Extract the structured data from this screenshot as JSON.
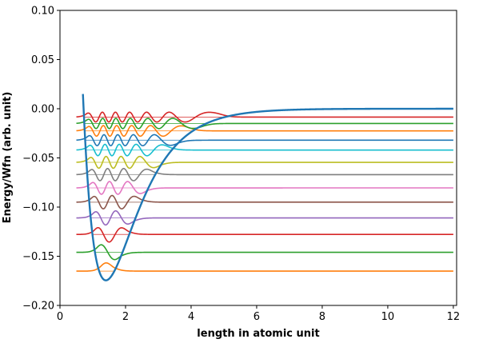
{
  "chart_data": {
    "type": "line",
    "title": "",
    "xlabel": "length in atomic unit",
    "ylabel": "Energy/Wfn (arb. unit)",
    "xlim": [
      0,
      12.1
    ],
    "ylim": [
      -0.2,
      0.1
    ],
    "x_ticks": [
      {
        "value": 0,
        "label": "0"
      },
      {
        "value": 2,
        "label": "2"
      },
      {
        "value": 4,
        "label": "4"
      },
      {
        "value": 6,
        "label": "6"
      },
      {
        "value": 8,
        "label": "8"
      },
      {
        "value": 10,
        "label": "10"
      },
      {
        "value": 12,
        "label": "12"
      }
    ],
    "y_ticks": [
      {
        "value": 0.1,
        "label": "0.10"
      },
      {
        "value": 0.05,
        "label": "0.05"
      },
      {
        "value": 0.0,
        "label": "0.00"
      },
      {
        "value": -0.05,
        "label": "−0.05"
      },
      {
        "value": -0.1,
        "label": "−0.10"
      },
      {
        "value": -0.15,
        "label": "−0.15"
      },
      {
        "value": -0.2,
        "label": "−0.20"
      }
    ],
    "grid": false,
    "potential": {
      "model": "morse",
      "De": 0.1745,
      "a": 1.02,
      "re": 1.4,
      "x_range": [
        0.7,
        12.0
      ],
      "color": "#1f77b4"
    },
    "x_range": [
      0.5,
      12.0
    ],
    "series": [
      {
        "level": 0,
        "energy": -0.1651,
        "amplitude": 0.01,
        "color": "#ff7f0e"
      },
      {
        "level": 1,
        "energy": -0.146,
        "amplitude": 0.0085,
        "color": "#2ca02c"
      },
      {
        "level": 2,
        "energy": -0.1278,
        "amplitude": 0.0078,
        "color": "#d62728"
      },
      {
        "level": 3,
        "energy": -0.111,
        "amplitude": 0.0072,
        "color": "#9467bd"
      },
      {
        "level": 4,
        "energy": -0.095,
        "amplitude": 0.0068,
        "color": "#8c564b"
      },
      {
        "level": 5,
        "energy": -0.0805,
        "amplitude": 0.0065,
        "color": "#e377c2"
      },
      {
        "level": 6,
        "energy": -0.067,
        "amplitude": 0.0062,
        "color": "#7f7f7f"
      },
      {
        "level": 7,
        "energy": -0.0545,
        "amplitude": 0.006,
        "color": "#bcbd22"
      },
      {
        "level": 8,
        "energy": -0.042,
        "amplitude": 0.0058,
        "color": "#17becf"
      },
      {
        "level": 9,
        "energy": -0.032,
        "amplitude": 0.0056,
        "color": "#1f77b4"
      },
      {
        "level": 10,
        "energy": -0.0225,
        "amplitude": 0.0054,
        "color": "#ff7f0e"
      },
      {
        "level": 11,
        "energy": -0.015,
        "amplitude": 0.0052,
        "color": "#2ca02c"
      },
      {
        "level": 12,
        "energy": -0.0085,
        "amplitude": 0.005,
        "color": "#d62728"
      }
    ]
  }
}
